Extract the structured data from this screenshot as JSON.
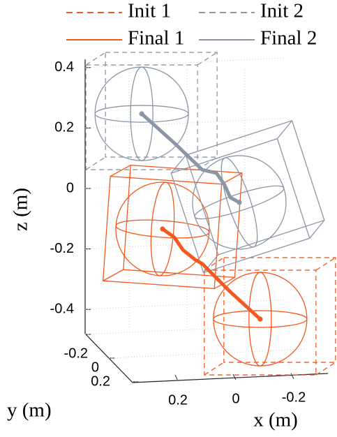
{
  "chart_data": {
    "type": "line3d",
    "xlabel": "x (m)",
    "ylabel": "y (m)",
    "zlabel": "z (m)",
    "xticks": [
      0.2,
      0,
      -0.2
    ],
    "yticks": [
      -0.2,
      0,
      0.2
    ],
    "zticks": [
      -0.4,
      -0.2,
      0,
      0.2,
      0.4
    ],
    "grid": true,
    "series": [
      {
        "name": "Init 1",
        "color": "#f5591f",
        "dash": true,
        "x": -0.084,
        "z": -0.432
      },
      {
        "name": "Init 2",
        "color": "#8c97a6",
        "dash": true,
        "x": 0.325,
        "z": 0.247
      },
      {
        "name": "Final 1",
        "color": "#f5591f",
        "dash": false,
        "x": 0.253,
        "z": -0.134
      },
      {
        "name": "Final 2",
        "color": "#8c97a6",
        "dash": false,
        "x": -0.012,
        "z": -0.046
      }
    ],
    "paths": [
      {
        "color": "#f5591f",
        "x": [
          -0.084,
          0.019,
          0.116,
          0.14,
          0.183,
          0.212,
          0.253
        ],
        "z": [
          -0.432,
          -0.342,
          -0.249,
          -0.236,
          -0.203,
          -0.162,
          -0.134
        ]
      },
      {
        "color": "#8c97a6",
        "x": [
          0.325,
          0.212,
          0.116,
          0.067,
          0.039,
          0.019,
          -0.012
        ],
        "z": [
          0.247,
          0.15,
          0.062,
          0.051,
          0.012,
          -0.03,
          -0.046
        ]
      }
    ]
  }
}
